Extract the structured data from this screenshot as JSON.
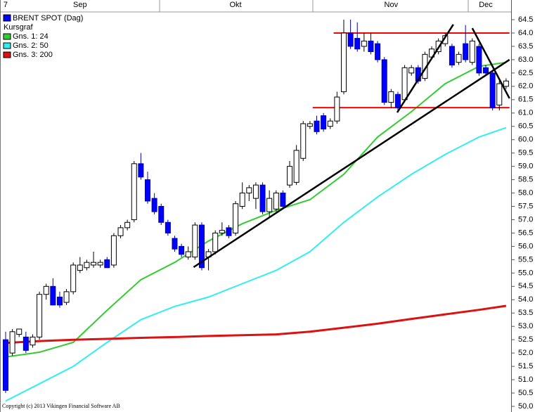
{
  "chart_data": {
    "type": "candlestick",
    "name": "BRENT SPOT (Dag)",
    "color": "#0000ff",
    "up_color": "#ffffff",
    "subtitle": "Kursgraf",
    "copyright": "Copyright (c) 2013 Vikingen Financial Software AB",
    "categories": [
      "7",
      null,
      null,
      null,
      null,
      null,
      null,
      null,
      null,
      null,
      null,
      "Sep",
      null,
      null,
      null,
      null,
      null,
      null,
      null,
      null,
      null,
      null,
      null,
      null,
      null,
      null,
      null,
      null,
      null,
      null,
      null,
      null,
      null,
      null,
      "Okt",
      null,
      null,
      null,
      null,
      null,
      null,
      null,
      null,
      null,
      null,
      null,
      null,
      null,
      null,
      null,
      null,
      null,
      null,
      null,
      null,
      null,
      null,
      "Nov",
      null,
      null,
      null,
      null,
      null,
      null,
      null,
      null,
      null,
      null,
      null,
      null,
      null,
      "Dec",
      null,
      null,
      null
    ],
    "open": [
      52.5,
      52.0,
      52.7,
      52.6,
      52.3,
      52.6,
      54.2,
      54.5,
      54.1,
      53.9,
      54.3,
      55.1,
      55.2,
      55.3,
      55.3,
      55.5,
      55.3,
      56.4,
      56.7,
      57.0,
      59.1,
      58.5,
      57.8,
      57.5,
      56.9,
      56.3,
      56.0,
      55.6,
      55.6,
      56.8,
      55.6,
      55.8,
      56.5,
      56.7,
      56.5,
      57.5,
      58.0,
      57.8,
      58.3,
      57.3,
      57.4,
      58.0,
      58.3,
      58.4,
      59.3,
      60.5,
      60.7,
      60.9,
      60.5,
      60.7,
      61.8,
      64.0,
      63.8,
      63.5,
      63.7,
      63.6,
      63.0,
      61.4,
      61.7,
      61.5,
      62.5,
      62.7,
      62.3,
      63.1,
      63.3,
      63.6,
      63.5,
      62.9,
      63.6,
      62.9,
      63.5,
      62.7,
      62.5,
      61.3,
      62.0
    ],
    "high": [
      52.8,
      52.9,
      52.9,
      52.8,
      52.7,
      54.3,
      54.6,
      54.8,
      54.3,
      54.4,
      55.4,
      55.6,
      55.5,
      55.8,
      55.5,
      55.6,
      56.5,
      56.8,
      57.0,
      59.2,
      59.5,
      58.8,
      58.0,
      57.6,
      57.0,
      56.4,
      56.1,
      56.0,
      56.9,
      56.9,
      55.9,
      56.6,
      56.9,
      56.8,
      57.7,
      58.4,
      58.3,
      58.4,
      58.4,
      58.1,
      58.1,
      58.1,
      59.2,
      59.8,
      60.7,
      60.7,
      60.9,
      61.0,
      60.8,
      61.8,
      64.5,
      64.5,
      64.4,
      64.0,
      64.0,
      63.7,
      63.1,
      61.9,
      61.8,
      62.8,
      62.8,
      62.8,
      63.3,
      63.5,
      63.8,
      64.0,
      63.6,
      63.3,
      64.3,
      63.8,
      63.6,
      62.8,
      62.6,
      62.2,
      62.3
    ],
    "low": [
      50.5,
      51.9,
      52.6,
      52.0,
      52.2,
      52.5,
      54.0,
      53.8,
      53.7,
      53.8,
      54.2,
      55.0,
      55.1,
      55.2,
      55.2,
      55.2,
      55.2,
      56.3,
      56.6,
      56.9,
      58.5,
      57.6,
      57.2,
      56.8,
      56.4,
      55.8,
      55.6,
      55.5,
      55.5,
      55.1,
      55.1,
      55.7,
      56.4,
      56.3,
      56.4,
      57.4,
      57.7,
      57.4,
      57.2,
      57.1,
      57.3,
      57.4,
      58.2,
      58.3,
      59.2,
      60.4,
      60.2,
      60.3,
      60.4,
      60.6,
      61.7,
      63.4,
      63.3,
      63.3,
      63.2,
      62.9,
      61.3,
      61.2,
      61.1,
      61.4,
      62.4,
      62.1,
      62.2,
      63.0,
      63.2,
      63.5,
      62.7,
      62.8,
      62.9,
      62.8,
      62.4,
      62.4,
      61.1,
      61.1,
      61.9
    ],
    "close": [
      50.6,
      52.8,
      52.9,
      52.1,
      52.6,
      54.2,
      54.5,
      53.8,
      53.8,
      54.3,
      55.3,
      55.3,
      55.4,
      55.4,
      55.4,
      55.2,
      56.4,
      56.7,
      56.9,
      59.1,
      58.6,
      57.7,
      57.3,
      56.9,
      56.5,
      55.9,
      55.7,
      55.8,
      56.8,
      55.2,
      55.8,
      56.5,
      56.6,
      56.4,
      57.6,
      58.0,
      58.2,
      58.3,
      57.3,
      57.8,
      58.0,
      57.5,
      59.0,
      59.6,
      60.6,
      60.6,
      60.3,
      60.4,
      60.7,
      61.6,
      64.0,
      63.5,
      63.4,
      63.7,
      63.3,
      63.0,
      61.4,
      61.8,
      61.2,
      62.7,
      62.7,
      62.2,
      63.2,
      63.4,
      63.7,
      63.9,
      62.8,
      63.2,
      63.0,
      63.7,
      62.5,
      62.5,
      61.2,
      62.1,
      62.2
    ],
    "series": [
      {
        "name": "Gns. 1: 24",
        "color": "#33cc33",
        "x": [
          0,
          5,
          10,
          15,
          20,
          25,
          30,
          35,
          40,
          45,
          50,
          55,
          60,
          65,
          70,
          74
        ],
        "values": [
          51.85,
          52.03,
          52.4,
          53.6,
          54.75,
          55.4,
          56.2,
          56.85,
          57.35,
          57.75,
          58.7,
          60.1,
          61.05,
          62.1,
          62.75,
          62.9
        ]
      },
      {
        "name": "Gns. 2: 50",
        "color": "#33eeee",
        "x": [
          0,
          5,
          10,
          15,
          20,
          25,
          30,
          35,
          40,
          45,
          50,
          55,
          60,
          65,
          70,
          74
        ],
        "values": [
          50.2,
          50.85,
          51.5,
          52.4,
          53.25,
          53.75,
          54.1,
          54.6,
          55.1,
          55.8,
          56.9,
          57.85,
          58.7,
          59.45,
          60.1,
          60.45
        ]
      },
      {
        "name": "Gns. 3: 200",
        "color": "#dd1111",
        "x": [
          0,
          5,
          10,
          15,
          20,
          25,
          30,
          35,
          40,
          45,
          50,
          55,
          60,
          65,
          70,
          74
        ],
        "values": [
          52.38,
          52.45,
          52.5,
          52.53,
          52.57,
          52.6,
          52.64,
          52.67,
          52.7,
          52.8,
          52.95,
          53.1,
          53.28,
          53.45,
          53.62,
          53.77
        ]
      }
    ],
    "trend_lines": [
      {
        "color": "#000000",
        "x": [
          27.8,
          74.5
        ],
        "values": [
          55.22,
          63.0
        ]
      },
      {
        "color": "#000000",
        "x": [
          57.9,
          66.2
        ],
        "values": [
          61.02,
          64.32
        ]
      },
      {
        "color": "#000000",
        "x": [
          69.0,
          74.5
        ],
        "values": [
          64.18,
          61.55
        ]
      }
    ],
    "levels": [
      {
        "color": "#ff0000",
        "value": 64.0,
        "x": [
          48.5,
          74.5
        ]
      },
      {
        "color": "#ff0000",
        "value": 61.2,
        "x": [
          45.4,
          74.5
        ]
      }
    ],
    "xlim": [
      -0.83,
      74.74
    ],
    "ylim": [
      50,
      64.5
    ],
    "yticks": [
      {
        "value": 50,
        "label": "50.0"
      },
      {
        "value": 50.5,
        "label": "50.5"
      },
      {
        "value": 51,
        "label": "51.0"
      },
      {
        "value": 51.5,
        "label": "51.5"
      },
      {
        "value": 52,
        "label": "52.0"
      },
      {
        "value": 52.5,
        "label": "52.5"
      },
      {
        "value": 53,
        "label": "53.0"
      },
      {
        "value": 53.5,
        "label": "53.5"
      },
      {
        "value": 54,
        "label": "54.0"
      },
      {
        "value": 54.5,
        "label": "54.5"
      },
      {
        "value": 55,
        "label": "55.0"
      },
      {
        "value": 55.5,
        "label": "55.5"
      },
      {
        "value": 56,
        "label": "56.0"
      },
      {
        "value": 56.5,
        "label": "56.5"
      },
      {
        "value": 57,
        "label": "57.0"
      },
      {
        "value": 57.5,
        "label": "57.5"
      },
      {
        "value": 58,
        "label": "58.0"
      },
      {
        "value": 58.5,
        "label": "58.5"
      },
      {
        "value": 59,
        "label": "59.0"
      },
      {
        "value": 59.5,
        "label": "59.5"
      },
      {
        "value": 60,
        "label": "60.0"
      },
      {
        "value": 60.5,
        "label": "60.5"
      },
      {
        "value": 61,
        "label": "61.0"
      },
      {
        "value": 61.5,
        "label": "61.5"
      },
      {
        "value": 62,
        "label": "62.0"
      },
      {
        "value": 62.5,
        "label": "62.5"
      },
      {
        "value": 63,
        "label": "63.0"
      },
      {
        "value": 63.5,
        "label": "63.5"
      },
      {
        "value": 64,
        "label": "64.0"
      },
      {
        "value": 64.5,
        "label": "64.5"
      }
    ]
  }
}
